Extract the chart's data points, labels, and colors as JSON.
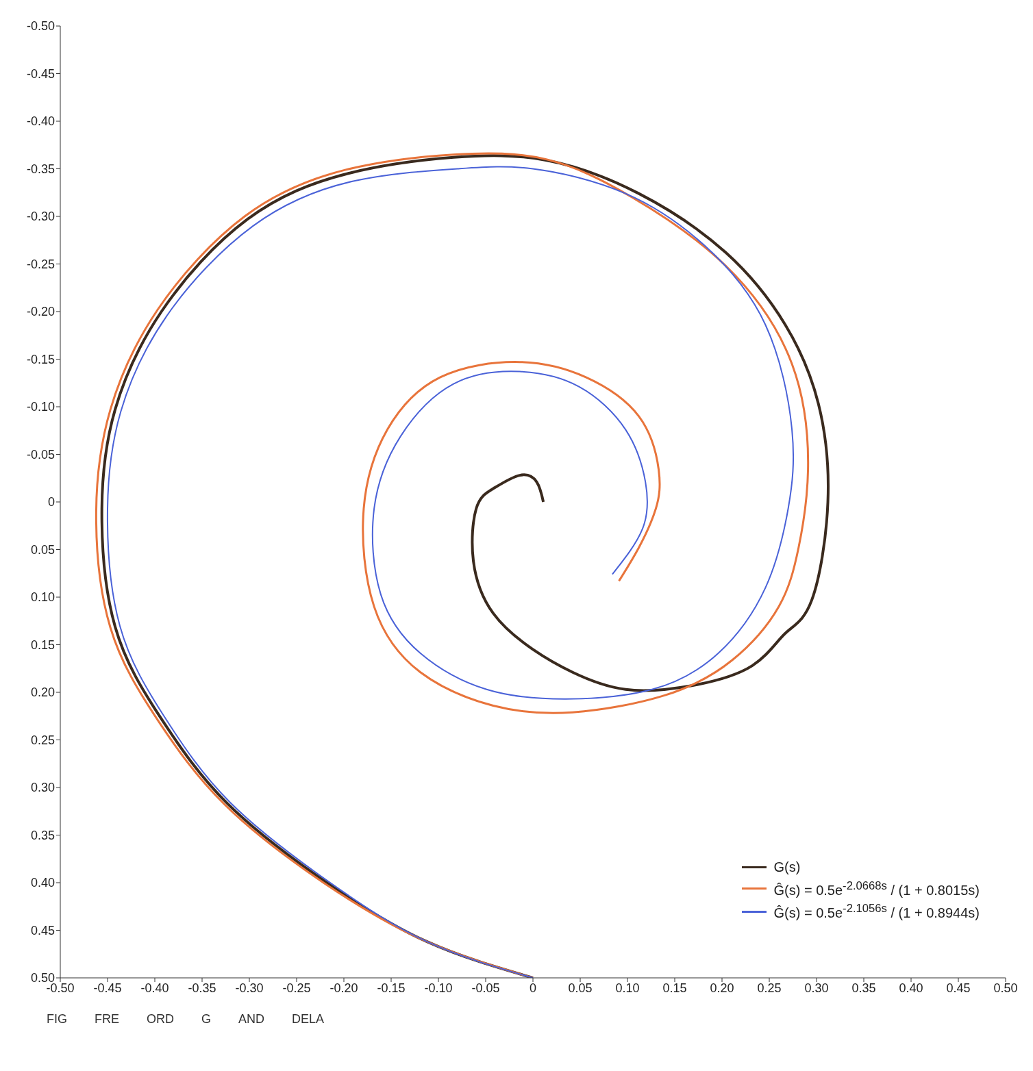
{
  "chart_data": {
    "type": "line",
    "xlim": [
      -0.5,
      0.5
    ],
    "xticks": [
      {
        "value": -0.5,
        "label": "-0.50"
      },
      {
        "value": -0.45,
        "label": "-0.45"
      },
      {
        "value": -0.4,
        "label": "-0.40"
      },
      {
        "value": -0.35,
        "label": "-0.35"
      },
      {
        "value": -0.3,
        "label": "-0.30"
      },
      {
        "value": -0.25,
        "label": "-0.25"
      },
      {
        "value": -0.2,
        "label": "-0.20"
      },
      {
        "value": -0.15,
        "label": "-0.15"
      },
      {
        "value": -0.1,
        "label": "-0.10"
      },
      {
        "value": -0.05,
        "label": "-0.05"
      },
      0,
      {
        "value": 0.05,
        "label": "0.05"
      },
      {
        "value": 0.1,
        "label": "0.10"
      },
      {
        "value": 0.15,
        "label": "0.15"
      },
      {
        "value": 0.2,
        "label": "0.20"
      },
      {
        "value": 0.25,
        "label": "0.25"
      },
      {
        "value": 0.3,
        "label": "0.30"
      },
      {
        "value": 0.35,
        "label": "0.35"
      },
      {
        "value": 0.4,
        "label": "0.40"
      },
      {
        "value": 0.45,
        "label": "0.45"
      },
      {
        "value": 0.5,
        "label": "0.50"
      }
    ],
    "ylim": [
      0.5,
      -0.5
    ],
    "yticks": [
      {
        "value": -0.5,
        "label": "-0.50"
      },
      {
        "value": -0.45,
        "label": "-0.45"
      },
      {
        "value": -0.4,
        "label": "-0.40"
      },
      {
        "value": -0.35,
        "label": "-0.35"
      },
      {
        "value": -0.3,
        "label": "-0.30"
      },
      {
        "value": -0.25,
        "label": "-0.25"
      },
      {
        "value": -0.2,
        "label": "-0.20"
      },
      {
        "value": -0.15,
        "label": "-0.15"
      },
      {
        "value": -0.1,
        "label": "-0.10"
      },
      {
        "value": -0.05,
        "label": "-0.05"
      },
      0,
      {
        "value": 0.05,
        "label": "0.05"
      },
      {
        "value": 0.1,
        "label": "0.10"
      },
      {
        "value": 0.15,
        "label": "0.15"
      },
      {
        "value": 0.2,
        "label": "0.20"
      },
      {
        "value": 0.25,
        "label": "0.25"
      },
      {
        "value": 0.3,
        "label": "0.30"
      },
      {
        "value": 0.35,
        "label": "0.35"
      },
      {
        "value": 0.4,
        "label": "0.40"
      },
      {
        "value": 0.45,
        "label": "0.45"
      },
      {
        "value": 0.5,
        "label": "0.50"
      }
    ],
    "legend": "bottom right",
    "marker": "none",
    "line_style": "solid",
    "series": [
      {
        "name": "G(s)",
        "color": "#3a2a1e",
        "x": [
          0,
          -0.112,
          -0.218,
          -0.323,
          -0.393,
          -0.442,
          -0.456,
          -0.442,
          -0.393,
          -0.302,
          -0.196,
          -0.084,
          0.014,
          0.112,
          0.204,
          0.267,
          0.302,
          0.312,
          0.295,
          0.267,
          0.232,
          0.168,
          0.098,
          0.042,
          0,
          -0.042,
          -0.063,
          -0.06,
          -0.042,
          -0.014,
          0.004,
          0.011
        ],
        "values": [
          0.5,
          0.462,
          0.4,
          0.317,
          0.228,
          0.131,
          0.007,
          -0.097,
          -0.2,
          -0.297,
          -0.345,
          -0.362,
          -0.359,
          -0.324,
          -0.262,
          -0.186,
          -0.103,
          0,
          0.103,
          0.138,
          0.172,
          0.193,
          0.197,
          0.179,
          0.155,
          0.117,
          0.062,
          0.007,
          -0.014,
          -0.028,
          -0.021,
          0
        ]
      },
      {
        "name": "Ĝ(s) = 0.5e$^{-2.0668s}$ / (1 + 0.8015s)",
        "color": "#e8743b",
        "x": [
          0,
          -0.112,
          -0.22,
          -0.326,
          -0.397,
          -0.447,
          -0.462,
          -0.447,
          -0.397,
          -0.305,
          -0.198,
          -0.084,
          0.014,
          0.105,
          0.204,
          0.274,
          0.291,
          0.281,
          0.26,
          0.211,
          0.14,
          0.042,
          -0.042,
          -0.119,
          -0.168,
          -0.179,
          -0.154,
          -0.098,
          -0.014,
          0.056,
          0.112,
          0.133,
          0.13,
          0.112,
          0.091
        ],
        "values": [
          0.5,
          0.462,
          0.401,
          0.318,
          0.229,
          0.132,
          0.01,
          -0.097,
          -0.202,
          -0.3,
          -0.349,
          -0.365,
          -0.36,
          -0.32,
          -0.248,
          -0.145,
          -0.034,
          0.048,
          0.11,
          0.166,
          0.203,
          0.221,
          0.214,
          0.179,
          0.11,
          0.007,
          -0.076,
          -0.131,
          -0.147,
          -0.131,
          -0.09,
          -0.034,
          0.007,
          0.048,
          0.083
        ]
      },
      {
        "name": "Ĝ(s) = 0.5e$^{-2.1056s}$ / (1 + 0.8944s)",
        "color": "#4a62d8",
        "x": [
          0,
          -0.112,
          -0.216,
          -0.32,
          -0.389,
          -0.437,
          -0.45,
          -0.436,
          -0.387,
          -0.296,
          -0.19,
          -0.08,
          0,
          0.098,
          0.182,
          0.246,
          0.274,
          0.27,
          0.246,
          0.196,
          0.126,
          0.035,
          -0.049,
          -0.119,
          -0.161,
          -0.168,
          -0.14,
          -0.084,
          -0.014,
          0.049,
          0.098,
          0.119,
          0.116,
          0.084
        ],
        "values": [
          0.5,
          0.462,
          0.399,
          0.316,
          0.227,
          0.13,
          0.007,
          -0.095,
          -0.196,
          -0.29,
          -0.337,
          -0.35,
          -0.35,
          -0.324,
          -0.269,
          -0.186,
          -0.076,
          0.007,
          0.09,
          0.159,
          0.197,
          0.207,
          0.197,
          0.159,
          0.097,
          0.007,
          -0.069,
          -0.124,
          -0.137,
          -0.121,
          -0.076,
          -0.021,
          0.028,
          0.076
        ]
      }
    ],
    "annotations": [
      "FIG",
      "FRE",
      "ORD",
      "G",
      "AND",
      "DELA"
    ]
  }
}
